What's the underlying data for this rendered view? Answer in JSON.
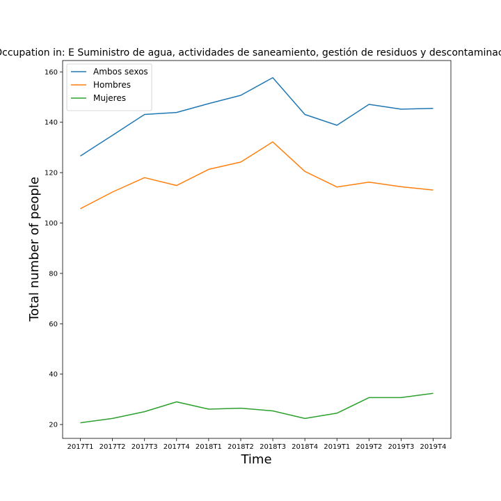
{
  "chart_data": {
    "type": "line",
    "title": "Occupation in: E Suministro de agua, actividades de saneamiento, gestión de residuos y descontaminación",
    "xlabel": "Time",
    "ylabel": "Total number of people",
    "categories": [
      "2017T1",
      "2017T2",
      "2017T3",
      "2017T4",
      "2018T1",
      "2018T2",
      "2018T3",
      "2018T4",
      "2019T1",
      "2019T2",
      "2019T3",
      "2019T4"
    ],
    "yticks": [
      20,
      40,
      60,
      80,
      100,
      120,
      140,
      160
    ],
    "ylim": [
      14.5,
      164.5
    ],
    "grid": false,
    "legend_position": "top-left",
    "series": [
      {
        "name": "Ambos sexos",
        "color": "#1f77b4",
        "values": [
          126.6,
          134.8,
          143.1,
          143.9,
          147.4,
          150.7,
          157.7,
          143.1,
          138.8,
          147.1,
          145.2,
          145.5
        ]
      },
      {
        "name": "Hombres",
        "color": "#ff7f0e",
        "values": [
          105.7,
          112.3,
          118.0,
          114.9,
          121.3,
          124.2,
          132.2,
          120.5,
          114.3,
          116.2,
          114.4,
          113.1
        ]
      },
      {
        "name": "Mujeres",
        "color": "#2ca02c",
        "values": [
          20.7,
          22.4,
          25.1,
          29.0,
          26.1,
          26.5,
          25.4,
          22.4,
          24.5,
          30.7,
          30.7,
          32.4
        ]
      }
    ]
  }
}
